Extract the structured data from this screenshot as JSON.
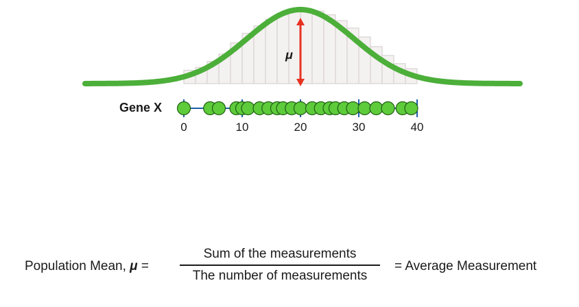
{
  "gene": {
    "label": "Gene X",
    "axis_min": 0,
    "axis_max": 40,
    "ticks": [
      "0",
      "10",
      "20",
      "30",
      "40"
    ],
    "measurements": [
      0,
      4.5,
      6,
      9,
      10,
      11,
      13,
      14.5,
      16,
      17,
      18.5,
      20,
      22,
      23.5,
      25,
      26,
      27.5,
      29,
      31,
      33,
      35,
      37.5,
      39
    ]
  },
  "distribution": {
    "mean": 20,
    "mean_symbol": "μ",
    "histogram_bar_heights": [
      0.18,
      0.22,
      0.3,
      0.4,
      0.55,
      0.68,
      0.78,
      0.87,
      0.93,
      0.98,
      1.0,
      0.98,
      0.93,
      0.85,
      0.75,
      0.63,
      0.5,
      0.38,
      0.27,
      0.2
    ],
    "curve_color": "#4caf3a",
    "arrow_color": "#e63322",
    "dot_color": "#5ecb3b",
    "axis_color": "#1d5fa8"
  },
  "formula": {
    "left_text": "Population Mean, ",
    "symbol": "μ",
    "equals": " =",
    "numerator": "Sum of the measurements",
    "denominator": "The number of measurements",
    "right_text": "= Average Measurement"
  }
}
